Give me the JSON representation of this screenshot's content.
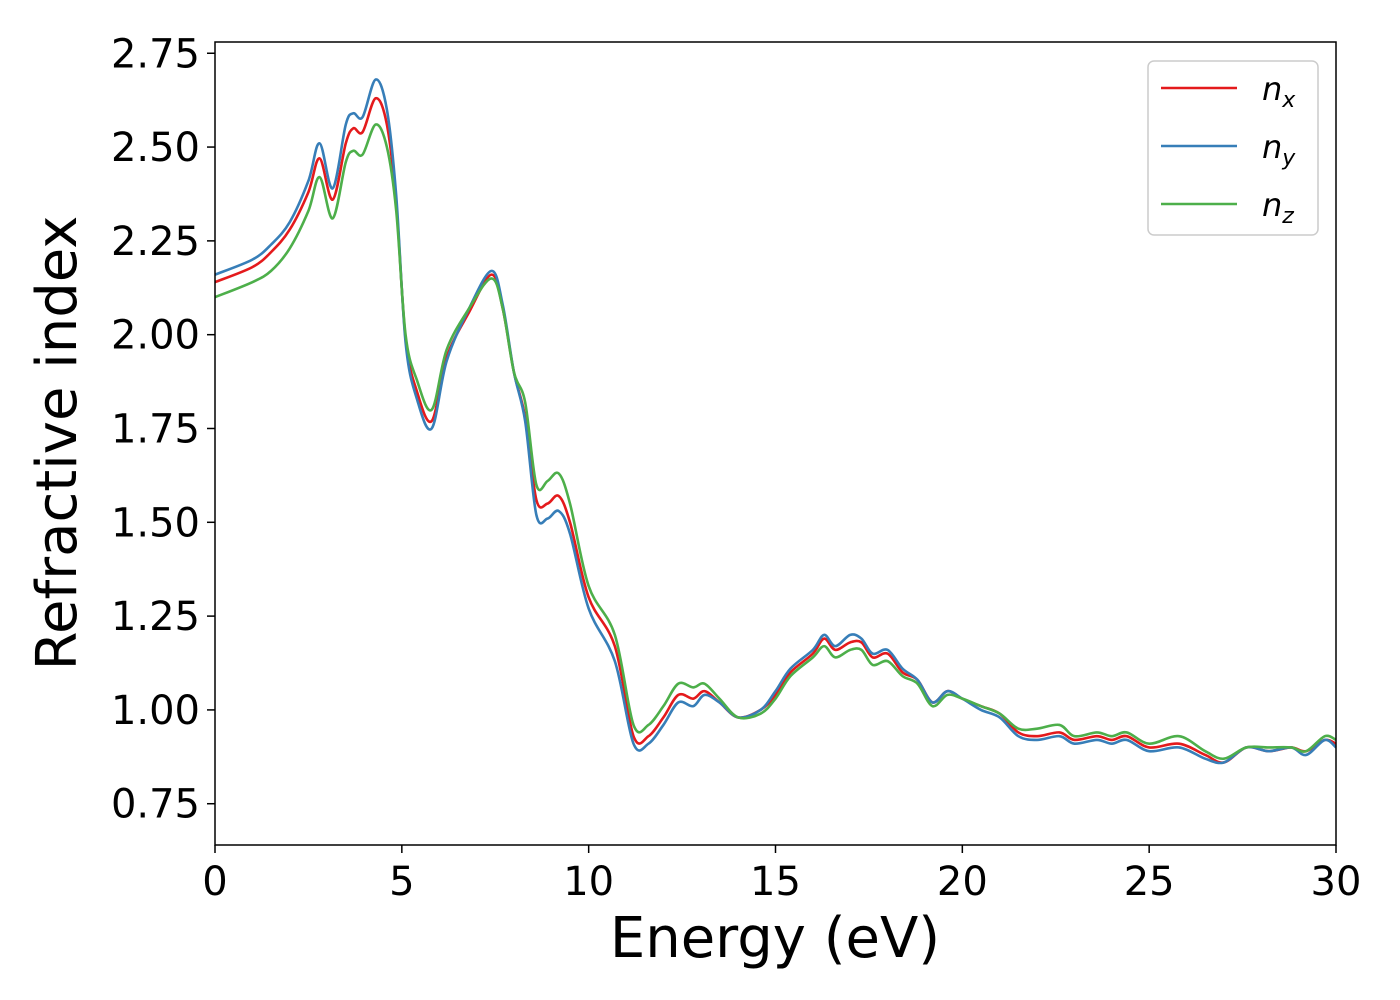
{
  "chart_data": {
    "type": "line",
    "xlabel": "Energy (eV)",
    "ylabel": "Refractive index",
    "xlim": [
      0,
      30
    ],
    "ylim": [
      0.64,
      2.78
    ],
    "xticks": [
      0,
      5,
      10,
      15,
      20,
      25,
      30
    ],
    "xtick_labels": [
      "0",
      "5",
      "10",
      "15",
      "20",
      "25",
      "30"
    ],
    "yticks": [
      0.75,
      1.0,
      1.25,
      1.5,
      1.75,
      2.0,
      2.25,
      2.5,
      2.75
    ],
    "ytick_labels": [
      "0.75",
      "1.00",
      "1.25",
      "1.50",
      "1.75",
      "2.00",
      "2.25",
      "2.50",
      "2.75"
    ],
    "grid": false,
    "legend": "top-right",
    "series": [
      {
        "name": "n",
        "subscript": "x",
        "color": "#e41a1c",
        "x": [
          0,
          1,
          1.5,
          2,
          2.5,
          2.8,
          3.15,
          3.5,
          3.7,
          3.95,
          4.3,
          4.6,
          4.85,
          5.1,
          5.4,
          5.8,
          6.2,
          6.8,
          7.4,
          7.7,
          8.0,
          8.3,
          8.6,
          8.9,
          9.2,
          9.5,
          10.0,
          10.7,
          11.2,
          11.6,
          12.0,
          12.4,
          12.8,
          13.1,
          13.5,
          14.0,
          14.6,
          15.0,
          15.4,
          16.0,
          16.3,
          16.6,
          17.0,
          17.3,
          17.6,
          18.0,
          18.4,
          18.8,
          19.2,
          19.6,
          20.0,
          20.5,
          21.0,
          21.5,
          22.0,
          22.6,
          23.0,
          23.6,
          24.0,
          24.4,
          25.0,
          25.8,
          26.5,
          27.0,
          27.6,
          28.2,
          28.8,
          29.2,
          29.7,
          30.0
        ],
        "y": [
          2.14,
          2.18,
          2.22,
          2.28,
          2.38,
          2.47,
          2.36,
          2.51,
          2.55,
          2.54,
          2.63,
          2.56,
          2.35,
          1.99,
          1.85,
          1.77,
          1.94,
          2.06,
          2.16,
          2.07,
          1.9,
          1.78,
          1.56,
          1.55,
          1.57,
          1.5,
          1.3,
          1.17,
          0.93,
          0.93,
          0.98,
          1.04,
          1.03,
          1.05,
          1.02,
          0.98,
          1.0,
          1.04,
          1.1,
          1.15,
          1.19,
          1.16,
          1.18,
          1.18,
          1.14,
          1.15,
          1.1,
          1.08,
          1.02,
          1.05,
          1.03,
          1.01,
          0.99,
          0.94,
          0.93,
          0.94,
          0.92,
          0.93,
          0.92,
          0.93,
          0.9,
          0.91,
          0.88,
          0.86,
          0.9,
          0.89,
          0.9,
          0.89,
          0.92,
          0.91
        ]
      },
      {
        "name": "n",
        "subscript": "y",
        "color": "#377eb8",
        "x": [
          0,
          1,
          1.5,
          2,
          2.5,
          2.8,
          3.15,
          3.5,
          3.7,
          3.95,
          4.3,
          4.6,
          4.85,
          5.1,
          5.4,
          5.8,
          6.2,
          6.8,
          7.4,
          7.7,
          8.0,
          8.3,
          8.6,
          8.9,
          9.2,
          9.5,
          10.0,
          10.7,
          11.2,
          11.6,
          12.0,
          12.4,
          12.8,
          13.1,
          13.5,
          14.0,
          14.6,
          15.0,
          15.4,
          16.0,
          16.3,
          16.6,
          17.0,
          17.3,
          17.6,
          18.0,
          18.4,
          18.8,
          19.2,
          19.6,
          20.0,
          20.5,
          21.0,
          21.5,
          22.0,
          22.6,
          23.0,
          23.6,
          24.0,
          24.4,
          25.0,
          25.8,
          26.5,
          27.0,
          27.6,
          28.2,
          28.8,
          29.2,
          29.7,
          30.0
        ],
        "y": [
          2.16,
          2.2,
          2.24,
          2.3,
          2.41,
          2.51,
          2.39,
          2.56,
          2.59,
          2.58,
          2.68,
          2.6,
          2.37,
          1.98,
          1.83,
          1.75,
          1.93,
          2.07,
          2.17,
          2.08,
          1.9,
          1.77,
          1.52,
          1.51,
          1.53,
          1.47,
          1.27,
          1.13,
          0.91,
          0.91,
          0.96,
          1.02,
          1.01,
          1.04,
          1.02,
          0.98,
          1.0,
          1.05,
          1.11,
          1.16,
          1.2,
          1.17,
          1.2,
          1.19,
          1.15,
          1.16,
          1.11,
          1.08,
          1.02,
          1.05,
          1.03,
          1.0,
          0.98,
          0.93,
          0.92,
          0.93,
          0.91,
          0.92,
          0.91,
          0.92,
          0.89,
          0.9,
          0.87,
          0.86,
          0.9,
          0.89,
          0.9,
          0.88,
          0.92,
          0.9
        ]
      },
      {
        "name": "n",
        "subscript": "z",
        "color": "#4daf4a",
        "x": [
          0,
          1,
          1.5,
          2,
          2.5,
          2.8,
          3.15,
          3.5,
          3.7,
          3.95,
          4.3,
          4.6,
          4.85,
          5.1,
          5.4,
          5.8,
          6.2,
          6.8,
          7.4,
          7.7,
          8.0,
          8.3,
          8.6,
          8.9,
          9.2,
          9.5,
          10.0,
          10.7,
          11.2,
          11.6,
          12.0,
          12.4,
          12.8,
          13.1,
          13.5,
          14.0,
          14.6,
          15.0,
          15.4,
          16.0,
          16.3,
          16.6,
          17.0,
          17.3,
          17.6,
          18.0,
          18.4,
          18.8,
          19.2,
          19.6,
          20.0,
          20.5,
          21.0,
          21.5,
          22.0,
          22.6,
          23.0,
          23.6,
          24.0,
          24.4,
          25.0,
          25.8,
          26.5,
          27.0,
          27.6,
          28.2,
          28.8,
          29.2,
          29.7,
          30.0
        ],
        "y": [
          2.1,
          2.14,
          2.17,
          2.23,
          2.33,
          2.42,
          2.31,
          2.46,
          2.49,
          2.48,
          2.56,
          2.5,
          2.33,
          2.0,
          1.88,
          1.8,
          1.96,
          2.07,
          2.15,
          2.07,
          1.9,
          1.82,
          1.6,
          1.61,
          1.63,
          1.55,
          1.33,
          1.2,
          0.96,
          0.96,
          1.01,
          1.07,
          1.06,
          1.07,
          1.03,
          0.98,
          0.99,
          1.03,
          1.09,
          1.14,
          1.17,
          1.14,
          1.16,
          1.16,
          1.12,
          1.13,
          1.09,
          1.07,
          1.01,
          1.04,
          1.03,
          1.01,
          0.99,
          0.95,
          0.95,
          0.96,
          0.93,
          0.94,
          0.93,
          0.94,
          0.91,
          0.93,
          0.89,
          0.87,
          0.9,
          0.9,
          0.9,
          0.89,
          0.93,
          0.92
        ]
      }
    ]
  }
}
